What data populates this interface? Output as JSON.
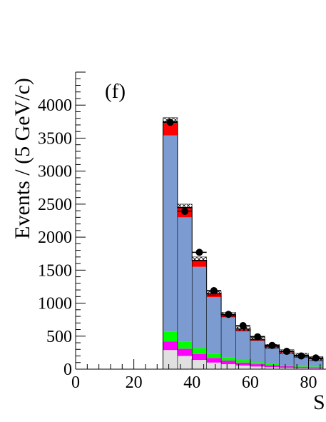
{
  "chart_data": {
    "type": "bar",
    "panel_label": "(f)",
    "ylabel": "Events / (5 GeV/c)",
    "xlabel": "S",
    "xlim": [
      0,
      86
    ],
    "ylim": [
      0,
      4500
    ],
    "x_ticks": [
      "0",
      "20",
      "40",
      "60",
      "80"
    ],
    "y_ticks": [
      "0",
      "500",
      "1000",
      "1500",
      "2000",
      "2500",
      "3000",
      "3500",
      "4000"
    ],
    "bin_edges": [
      30,
      35,
      40,
      45,
      50,
      55,
      60,
      65,
      70,
      75,
      80,
      85
    ],
    "series": [
      {
        "key": "grey",
        "color": "#e0e0e0",
        "values": [
          290,
          200,
          140,
          100,
          75,
          55,
          40,
          30,
          22,
          18,
          14
        ]
      },
      {
        "key": "magenta",
        "color": "#ff00ff",
        "values": [
          130,
          110,
          90,
          70,
          55,
          45,
          35,
          28,
          22,
          18,
          14
        ]
      },
      {
        "key": "green",
        "color": "#00ff00",
        "values": [
          150,
          110,
          90,
          65,
          50,
          40,
          30,
          22,
          18,
          14,
          12
        ]
      },
      {
        "key": "blue",
        "color": "#7b9bd1",
        "values": [
          2970,
          1880,
          1230,
          855,
          605,
          440,
          325,
          245,
          190,
          150,
          110
        ]
      },
      {
        "key": "red",
        "color": "#ff0000",
        "values": [
          210,
          150,
          100,
          60,
          40,
          30,
          25,
          20,
          15,
          12,
          10
        ]
      }
    ],
    "data_points": {
      "x": [
        32.5,
        37.5,
        42.5,
        47.5,
        52.5,
        57.5,
        62.5,
        67.5,
        72.5,
        77.5,
        82.5
      ],
      "y": [
        3740,
        2390,
        1770,
        1190,
        830,
        660,
        490,
        360,
        270,
        200,
        170
      ]
    },
    "hatched_tops": [
      3780,
      2470,
      1670,
      1150,
      830,
      610,
      470,
      345,
      265,
      210,
      160
    ]
  }
}
